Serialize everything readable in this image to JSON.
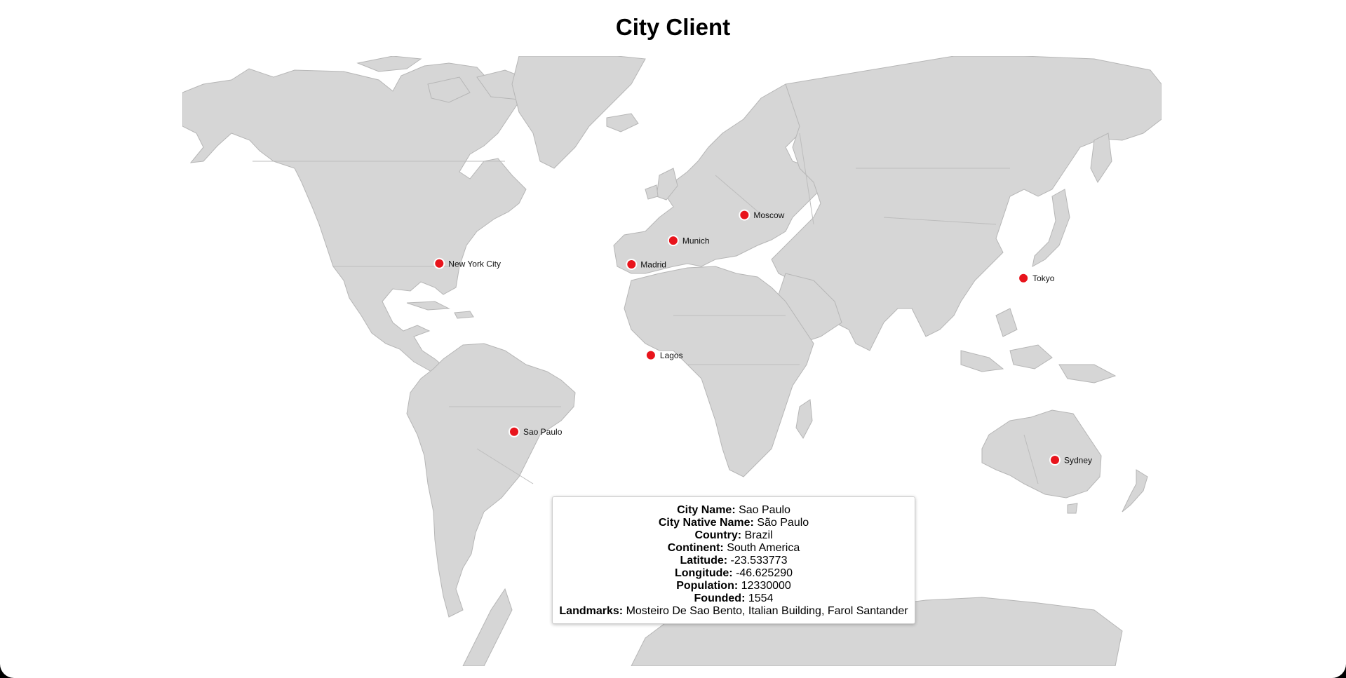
{
  "page": {
    "title": "City Client"
  },
  "map": {
    "land_color": "#d6d6d6",
    "marker_color": "#e8141c",
    "cities": [
      {
        "name": "New York City",
        "lat": 40.71,
        "lon": -74.01
      },
      {
        "name": "Sao Paulo",
        "lat": -23.53,
        "lon": -46.63
      },
      {
        "name": "Madrid",
        "lat": 40.42,
        "lon": -3.7
      },
      {
        "name": "Munich",
        "lat": 48.14,
        "lon": 11.58
      },
      {
        "name": "Moscow",
        "lat": 55.76,
        "lon": 37.62
      },
      {
        "name": "Lagos",
        "lat": 6.52,
        "lon": 3.38
      },
      {
        "name": "Tokyo",
        "lat": 35.68,
        "lon": 139.69
      },
      {
        "name": "Sydney",
        "lat": -33.87,
        "lon": 151.21
      }
    ]
  },
  "info": {
    "city_name_label": "City Name:",
    "city_name": "Sao Paulo",
    "native_name_label": "City Native Name:",
    "native_name": "São Paulo",
    "country_label": "Country:",
    "country": "Brazil",
    "continent_label": "Continent:",
    "continent": "South America",
    "latitude_label": "Latitude:",
    "latitude": "-23.533773",
    "longitude_label": "Longitude:",
    "longitude": "-46.625290",
    "population_label": "Population:",
    "population": "12330000",
    "founded_label": "Founded:",
    "founded": "1554",
    "landmarks_label": "Landmarks:",
    "landmarks": "Mosteiro De Sao Bento, Italian Building, Farol Santander"
  }
}
